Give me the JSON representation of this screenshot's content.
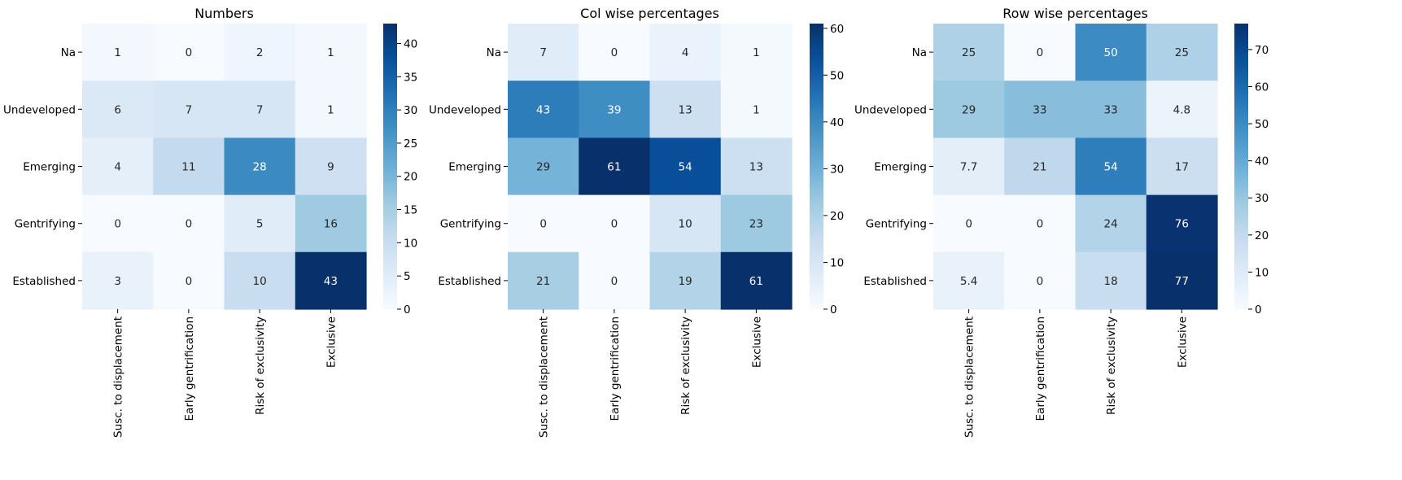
{
  "chart_data": [
    {
      "type": "heatmap",
      "title": "Numbers",
      "y_categories": [
        "Na",
        "Undeveloped",
        "Emerging",
        "Gentrifying",
        "Established"
      ],
      "x_categories": [
        "Susc. to displacement",
        "Early gentrification",
        "Risk of exclusivity",
        "Exclusive"
      ],
      "values": [
        [
          1,
          0,
          2,
          1
        ],
        [
          6,
          7,
          7,
          1
        ],
        [
          4,
          11,
          28,
          9
        ],
        [
          0,
          0,
          5,
          16
        ],
        [
          3,
          0,
          10,
          43
        ]
      ],
      "labels": [
        [
          "1",
          "0",
          "2",
          "1"
        ],
        [
          "6",
          "7",
          "7",
          "1"
        ],
        [
          "4",
          "11",
          "28",
          "9"
        ],
        [
          "0",
          "0",
          "5",
          "16"
        ],
        [
          "3",
          "0",
          "10",
          "43"
        ]
      ],
      "colorbar": {
        "min": 0,
        "max": 43,
        "ticks": [
          0,
          5,
          10,
          15,
          20,
          25,
          30,
          35,
          40
        ]
      },
      "colormap": "Blues"
    },
    {
      "type": "heatmap",
      "title": "Col wise percentages",
      "y_categories": [
        "Na",
        "Undeveloped",
        "Emerging",
        "Gentrifying",
        "Established"
      ],
      "x_categories": [
        "Susc. to displacement",
        "Early gentrification",
        "Risk of exclusivity",
        "Exclusive"
      ],
      "values": [
        [
          7,
          0,
          4,
          1
        ],
        [
          43,
          39,
          13,
          1
        ],
        [
          29,
          61,
          54,
          13
        ],
        [
          0,
          0,
          10,
          23
        ],
        [
          21,
          0,
          19,
          61
        ]
      ],
      "labels": [
        [
          "7",
          "0",
          "4",
          "1"
        ],
        [
          "43",
          "39",
          "13",
          "1"
        ],
        [
          "29",
          "61",
          "54",
          "13"
        ],
        [
          "0",
          "0",
          "10",
          "23"
        ],
        [
          "21",
          "0",
          "19",
          "61"
        ]
      ],
      "colorbar": {
        "min": 0,
        "max": 61,
        "ticks": [
          0,
          10,
          20,
          30,
          40,
          50,
          60
        ]
      },
      "colormap": "Blues"
    },
    {
      "type": "heatmap",
      "title": "Row wise percentages",
      "y_categories": [
        "Na",
        "Undeveloped",
        "Emerging",
        "Gentrifying",
        "Established"
      ],
      "x_categories": [
        "Susc. to displacement",
        "Early gentrification",
        "Risk of exclusivity",
        "Exclusive"
      ],
      "values": [
        [
          25,
          0,
          50,
          25
        ],
        [
          29,
          33,
          33,
          4.8
        ],
        [
          7.7,
          21,
          54,
          17
        ],
        [
          0,
          0,
          24,
          76
        ],
        [
          5.4,
          0,
          18,
          77
        ]
      ],
      "labels": [
        [
          "25",
          "0",
          "50",
          "25"
        ],
        [
          "29",
          "33",
          "33",
          "4.8"
        ],
        [
          "7.7",
          "21",
          "54",
          "17"
        ],
        [
          "0",
          "0",
          "24",
          "76"
        ],
        [
          "5.4",
          "0",
          "18",
          "77"
        ]
      ],
      "colorbar": {
        "min": 0,
        "max": 77,
        "ticks": [
          0,
          10,
          20,
          30,
          40,
          50,
          60,
          70
        ]
      },
      "colormap": "Blues"
    }
  ]
}
